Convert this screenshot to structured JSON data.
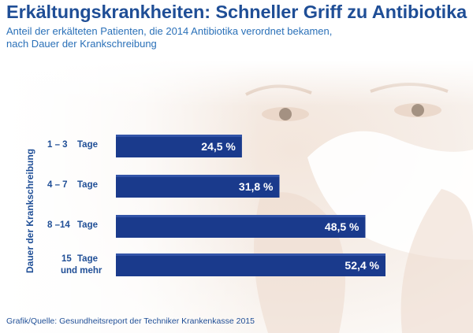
{
  "title": "Erkältungskrankheiten: Schneller Griff zu Antibiotika",
  "subtitle_line1": "Anteil der erkälteten Patienten, die 2014 Antibiotika verordnet bekamen,",
  "subtitle_line2": "nach Dauer der Krankschreibung",
  "source": "Grafik/Quelle: Gesundheitsreport der Techniker Krankenkasse 2015",
  "colors": {
    "bar": "#1a3a8c",
    "bar_dark": "#14307a",
    "text": "#1f4e96",
    "subtitle": "#2a70b8"
  },
  "chart_data": {
    "type": "bar",
    "orientation": "horizontal",
    "title": "Erkältungskrankheiten: Schneller Griff zu Antibiotika",
    "ylabel": "Dauer der Krankschreibung",
    "xlabel": "",
    "categories": [
      {
        "range": "1 – 3",
        "unit": "Tage"
      },
      {
        "range": "4 – 7",
        "unit": "Tage"
      },
      {
        "range": "8 –14",
        "unit": "Tage"
      },
      {
        "range": "15",
        "unit": "Tage",
        "unit2": "und mehr"
      }
    ],
    "values": [
      24.5,
      31.8,
      48.5,
      52.4
    ],
    "value_labels": [
      "24,5 %",
      "31,8 %",
      "48,5 %",
      "52,4 %"
    ],
    "xlim": [
      0,
      52.4
    ],
    "legend": "none",
    "grid": false
  }
}
